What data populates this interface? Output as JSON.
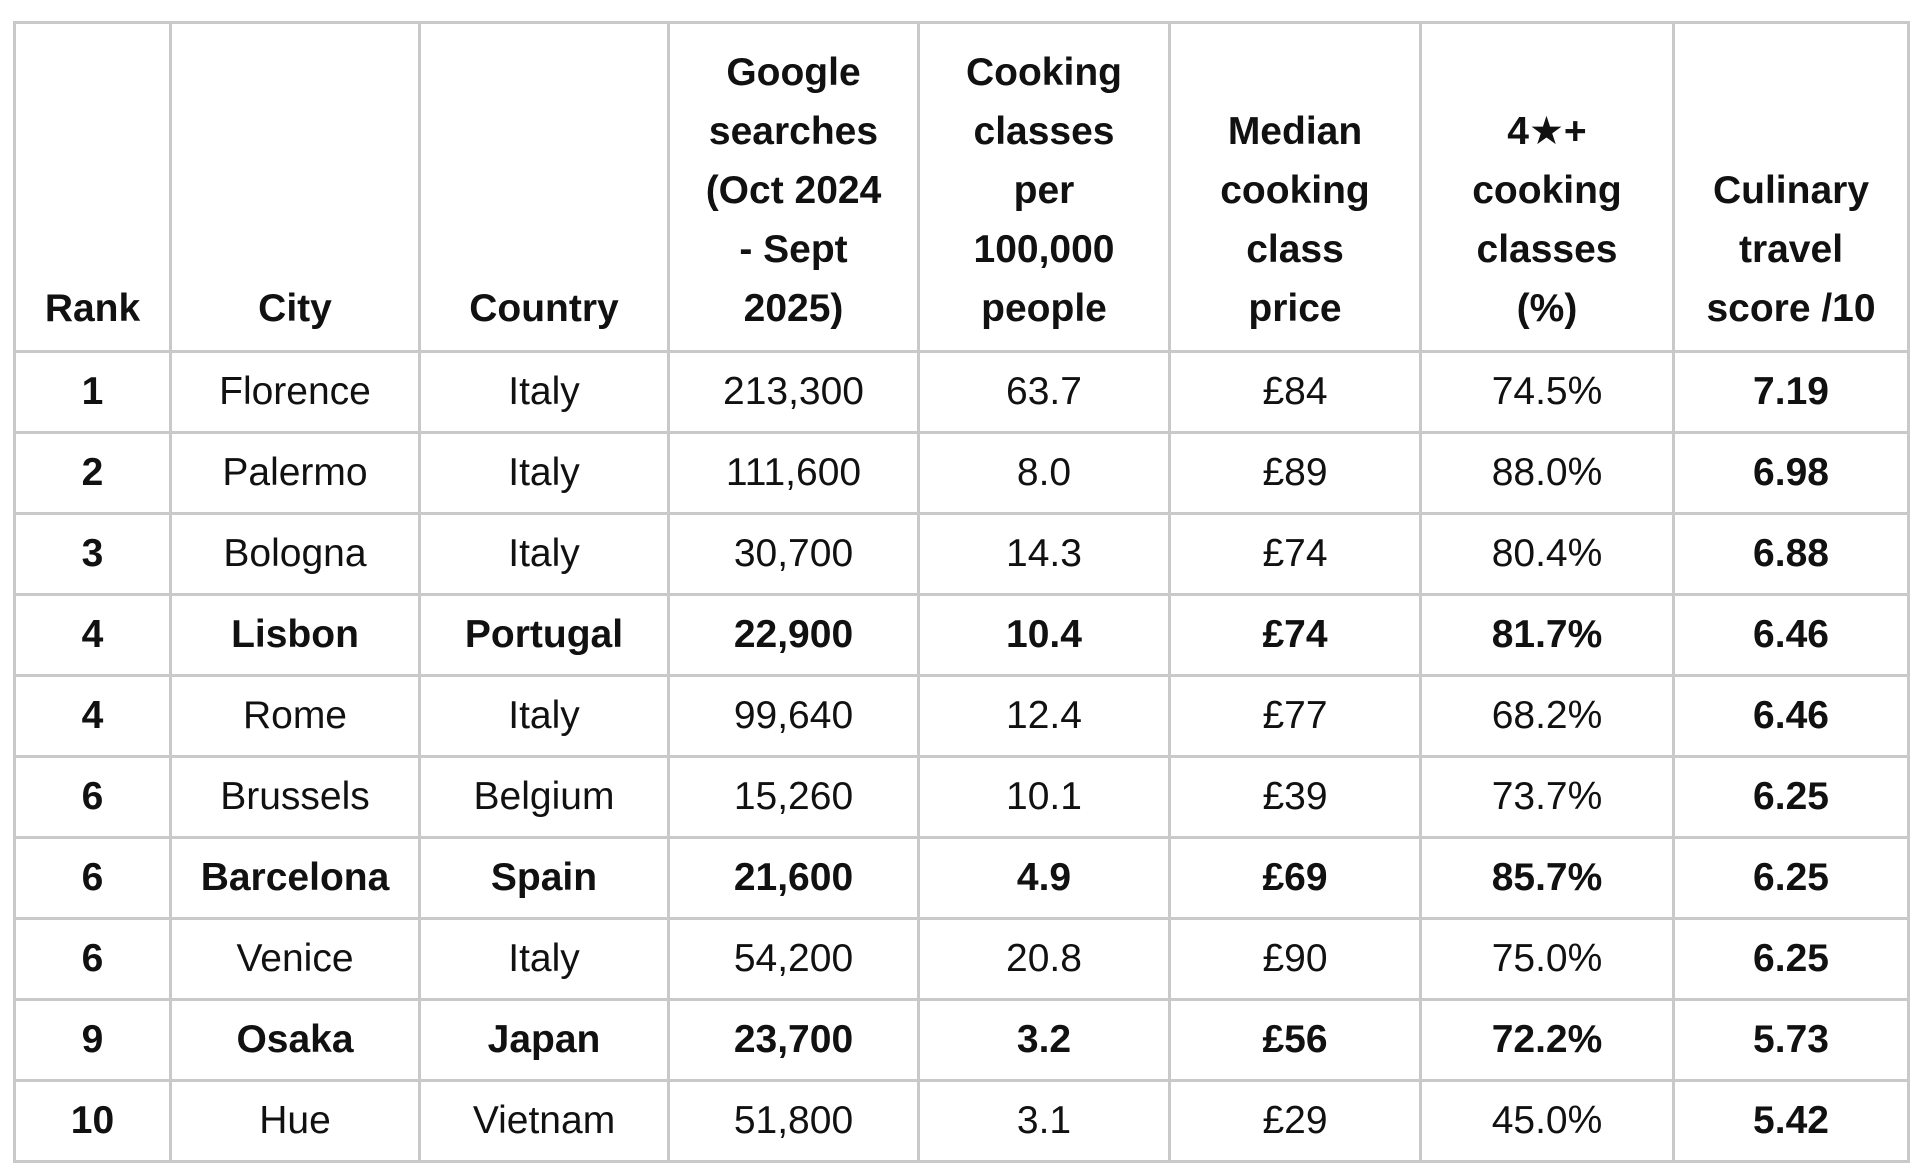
{
  "table": {
    "columns": [
      {
        "key": "rank",
        "lines": [
          "Rank"
        ]
      },
      {
        "key": "city",
        "lines": [
          "City"
        ]
      },
      {
        "key": "country",
        "lines": [
          "Country"
        ]
      },
      {
        "key": "searches",
        "lines": [
          "Google",
          "searches",
          "(Oct 2024",
          "- Sept",
          "2025)"
        ]
      },
      {
        "key": "classes_per_100k",
        "lines": [
          "Cooking",
          "classes",
          "per",
          "100,000",
          "people"
        ]
      },
      {
        "key": "median_price",
        "lines": [
          "Median",
          "cooking",
          "class",
          "price"
        ]
      },
      {
        "key": "four_star_pct",
        "lines": [
          "4★+",
          "cooking",
          "classes",
          "(%)"
        ]
      },
      {
        "key": "score",
        "lines": [
          "Culinary",
          "travel",
          "score /10"
        ]
      }
    ],
    "rows": [
      {
        "rank": "1",
        "city": "Florence",
        "country": "Italy",
        "searches": "213,300",
        "classes_per_100k": "63.7",
        "median_price": "£84",
        "four_star_pct": "74.5%",
        "score": "7.19",
        "highlight": false
      },
      {
        "rank": "2",
        "city": "Palermo",
        "country": "Italy",
        "searches": "111,600",
        "classes_per_100k": "8.0",
        "median_price": "£89",
        "four_star_pct": "88.0%",
        "score": "6.98",
        "highlight": false
      },
      {
        "rank": "3",
        "city": "Bologna",
        "country": "Italy",
        "searches": "30,700",
        "classes_per_100k": "14.3",
        "median_price": "£74",
        "four_star_pct": "80.4%",
        "score": "6.88",
        "highlight": false
      },
      {
        "rank": "4",
        "city": "Lisbon",
        "country": "Portugal",
        "searches": "22,900",
        "classes_per_100k": "10.4",
        "median_price": "£74",
        "four_star_pct": "81.7%",
        "score": "6.46",
        "highlight": true
      },
      {
        "rank": "4",
        "city": "Rome",
        "country": "Italy",
        "searches": "99,640",
        "classes_per_100k": "12.4",
        "median_price": "£77",
        "four_star_pct": "68.2%",
        "score": "6.46",
        "highlight": false
      },
      {
        "rank": "6",
        "city": "Brussels",
        "country": "Belgium",
        "searches": "15,260",
        "classes_per_100k": "10.1",
        "median_price": "£39",
        "four_star_pct": "73.7%",
        "score": "6.25",
        "highlight": false
      },
      {
        "rank": "6",
        "city": "Barcelona",
        "country": "Spain",
        "searches": "21,600",
        "classes_per_100k": "4.9",
        "median_price": "£69",
        "four_star_pct": "85.7%",
        "score": "6.25",
        "highlight": true
      },
      {
        "rank": "6",
        "city": "Venice",
        "country": "Italy",
        "searches": "54,200",
        "classes_per_100k": "20.8",
        "median_price": "£90",
        "four_star_pct": "75.0%",
        "score": "6.25",
        "highlight": false
      },
      {
        "rank": "9",
        "city": "Osaka",
        "country": "Japan",
        "searches": "23,700",
        "classes_per_100k": "3.2",
        "median_price": "£56",
        "four_star_pct": "72.2%",
        "score": "5.73",
        "highlight": true
      },
      {
        "rank": "10",
        "city": "Hue",
        "country": "Vietnam",
        "searches": "51,800",
        "classes_per_100k": "3.1",
        "median_price": "£29",
        "four_star_pct": "45.0%",
        "score": "5.42",
        "highlight": false
      }
    ]
  },
  "styles": {
    "border_color": "#c9c9c9",
    "text_color": "#111111",
    "background": "#ffffff"
  }
}
